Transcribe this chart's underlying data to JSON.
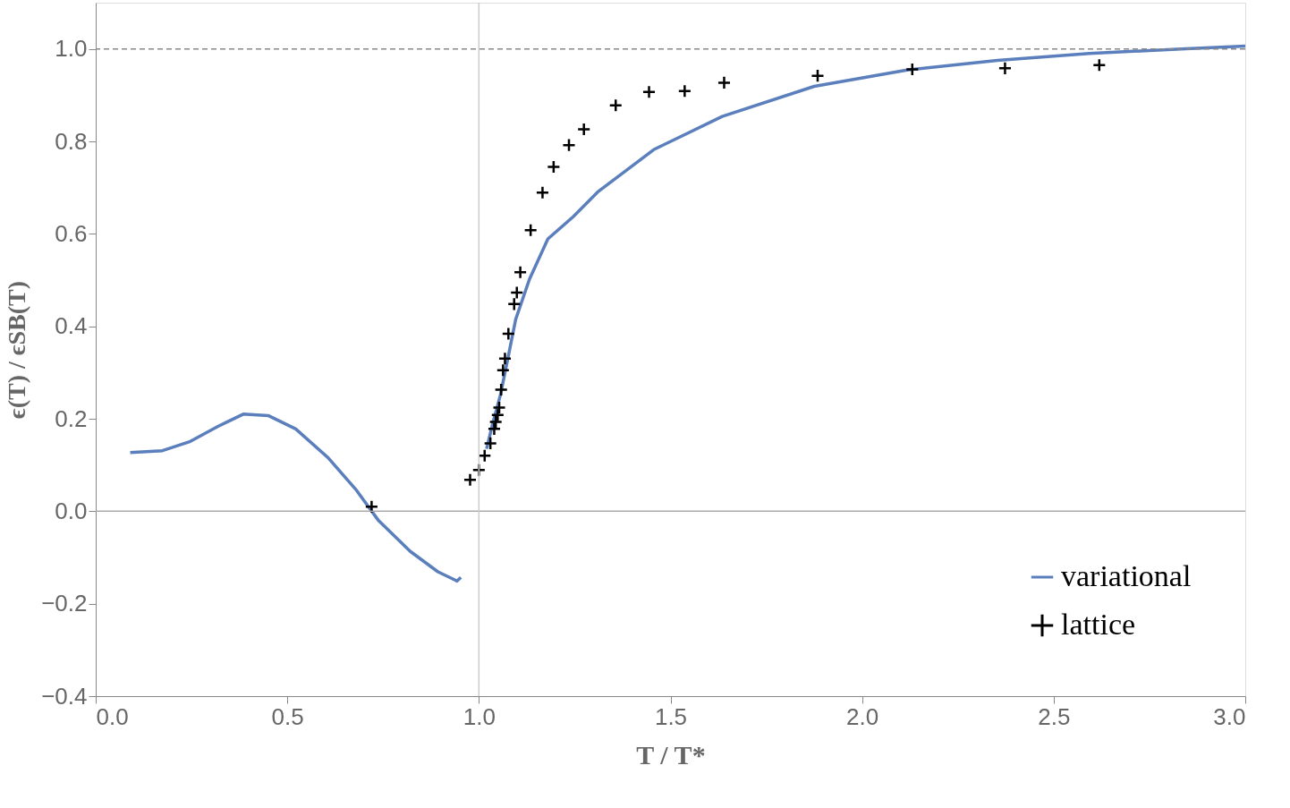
{
  "chart_data": {
    "type": "line",
    "xlabel": "T / T*",
    "ylabel": "ϵ(T) / ϵSB(T)",
    "xlim": [
      0,
      3
    ],
    "xticks": [
      {
        "value": 0,
        "label": "0.0"
      },
      0.5,
      {
        "value": 1,
        "label": "1.0"
      },
      1.5,
      {
        "value": 2,
        "label": "2.0"
      },
      2.5,
      {
        "value": 3,
        "label": "3.0"
      }
    ],
    "ylim": [
      -0.4,
      1.1
    ],
    "yticks": [
      -0.4,
      -0.2,
      {
        "value": 0,
        "label": "0.0"
      },
      0.2,
      0.4,
      0.6,
      0.8,
      {
        "value": 1,
        "label": "1.0"
      }
    ],
    "grid": false,
    "legend": "bottom right",
    "ref_lines": [
      {
        "axis": "y",
        "value": 1.0,
        "color": "#888888",
        "line_style": "dashed"
      },
      {
        "axis": "y",
        "value": 0.0,
        "color": "#aaaaaa",
        "line_style": "solid"
      },
      {
        "axis": "x",
        "value": 1.0,
        "color": "#cccccc",
        "line_style": "solid"
      }
    ],
    "series": [
      {
        "name": "variational",
        "color": "#5b7fbd",
        "line_style": "solid",
        "marker": "none",
        "x": [
          0.09,
          0.174,
          0.247,
          0.318,
          0.385,
          0.45,
          0.522,
          0.606,
          0.678,
          0.737,
          0.821,
          0.893,
          0.943,
          0.953,
          0.99,
          1.02,
          1.037,
          1.056,
          1.075,
          1.096,
          1.132,
          1.18,
          1.246,
          1.312,
          1.456,
          1.635,
          1.875,
          2.114,
          2.353,
          2.593,
          2.832,
          3.0
        ],
        "values": [
          0.127,
          0.131,
          0.151,
          0.183,
          0.21,
          0.207,
          0.178,
          0.116,
          0.048,
          -0.019,
          -0.087,
          -0.131,
          -0.151,
          -0.143,
          null,
          0.135,
          0.193,
          0.251,
          0.328,
          0.415,
          0.502,
          0.589,
          0.637,
          0.692,
          0.782,
          0.854,
          0.919,
          0.954,
          0.975,
          0.99,
          1.0,
          1.006
        ]
      },
      {
        "name": "lattice",
        "type": "scatter",
        "color": "#000000",
        "marker": "cross",
        "x": [
          0.72,
          0.977,
          1.0,
          1.015,
          1.03,
          1.04,
          1.044,
          1.049,
          1.053,
          1.058,
          1.063,
          1.068,
          1.077,
          1.092,
          1.099,
          1.108,
          1.135,
          1.166,
          1.195,
          1.235,
          1.274,
          1.357,
          1.444,
          1.537,
          1.64,
          1.884,
          2.131,
          2.373,
          2.619
        ],
        "values": [
          0.01,
          0.068,
          0.089,
          0.12,
          0.147,
          0.178,
          0.193,
          0.208,
          0.224,
          0.263,
          0.305,
          0.33,
          0.384,
          0.448,
          0.473,
          0.517,
          0.608,
          0.689,
          0.745,
          0.792,
          0.826,
          0.878,
          0.907,
          0.909,
          0.927,
          0.942,
          0.956,
          0.958,
          0.965
        ]
      }
    ]
  }
}
